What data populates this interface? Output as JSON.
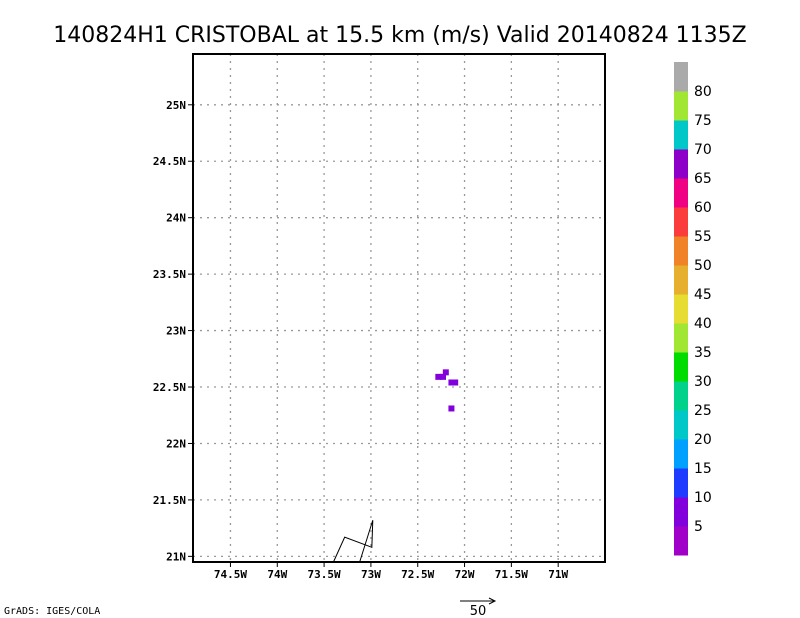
{
  "chart_data": {
    "type": "heatmap",
    "title": "140824H1 CRISTOBAL at 15.5 km (m/s) Valid 20140824 1135Z",
    "xlabel": "",
    "ylabel": "",
    "xlim": [
      -74.9,
      -70.5
    ],
    "ylim": [
      20.95,
      25.45
    ],
    "x_ticks": [
      -74.5,
      -74.0,
      -73.5,
      -73.0,
      -72.5,
      -72.0,
      -71.5,
      -71.0
    ],
    "x_tick_labels": [
      "74.5W",
      "74W",
      "73.5W",
      "73W",
      "72.5W",
      "72W",
      "71.5W",
      "71W"
    ],
    "y_ticks": [
      21.0,
      21.5,
      22.0,
      22.5,
      23.0,
      23.5,
      24.0,
      24.5,
      25.0
    ],
    "y_tick_labels": [
      "21N",
      "21.5N",
      "22N",
      "22.5N",
      "23N",
      "23.5N",
      "24N",
      "24.5N",
      "25N"
    ],
    "grid": true,
    "colorbar": {
      "labels": [
        "5",
        "10",
        "15",
        "20",
        "25",
        "30",
        "35",
        "40",
        "45",
        "50",
        "55",
        "60",
        "65",
        "70",
        "75",
        "80"
      ],
      "colors": [
        "#a000c8",
        "#8200dc",
        "#1e3cff",
        "#00a0ff",
        "#00c8c8",
        "#00d28c",
        "#00dc00",
        "#a0e632",
        "#e6dc32",
        "#e6af2d",
        "#f08228",
        "#fa3c3c",
        "#f00082",
        "#8c00c8",
        "#00c8c8",
        "#a0e632",
        "#aaaaaa"
      ]
    },
    "cells": [
      {
        "lon": -72.28,
        "lat": 22.59,
        "value": 5
      },
      {
        "lon": -72.23,
        "lat": 22.59,
        "value": 5
      },
      {
        "lon": -72.2,
        "lat": 22.63,
        "value": 5
      },
      {
        "lon": -72.14,
        "lat": 22.54,
        "value": 5
      },
      {
        "lon": -72.1,
        "lat": 22.54,
        "value": 5
      },
      {
        "lon": -72.14,
        "lat": 22.31,
        "value": 5
      }
    ],
    "outline_points": [
      {
        "lon": -73.4,
        "lat": 20.95
      },
      {
        "lon": -73.28,
        "lat": 21.17
      },
      {
        "lon": -72.99,
        "lat": 21.08
      },
      {
        "lon": -72.98,
        "lat": 21.32
      },
      {
        "lon": -73.12,
        "lat": 20.95
      }
    ],
    "reference_vector": {
      "label": "50"
    }
  },
  "footer": {
    "credit": "GrADS: IGES/COLA"
  }
}
